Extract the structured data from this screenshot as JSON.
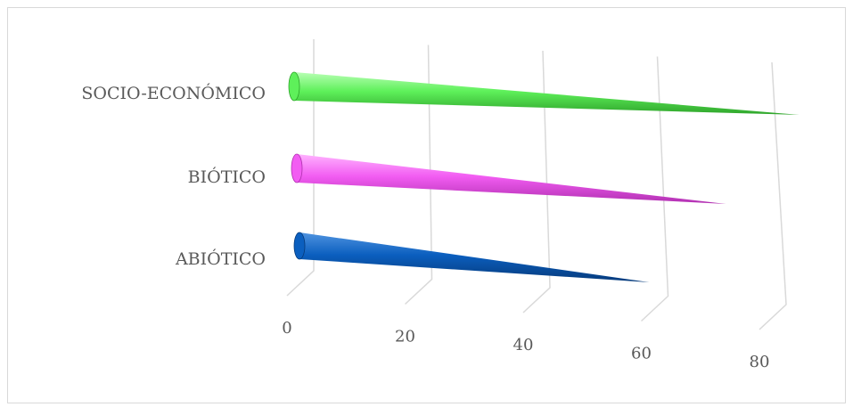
{
  "chart_data": {
    "type": "bar",
    "orientation": "horizontal",
    "style": "3d-cone",
    "categories": [
      "ABIÓTICO",
      "BIÓTICO",
      "SOCIO-ECONÓMICO"
    ],
    "series": [
      {
        "values": [
          60,
          72,
          83
        ]
      }
    ],
    "colors": [
      "#0b5fbf",
      "#f25cf2",
      "#5ef05a"
    ],
    "xticks": [
      "0",
      "20",
      "40",
      "60",
      "80"
    ],
    "xlim": [
      0,
      80
    ],
    "title": "",
    "xlabel": "",
    "ylabel": "",
    "grid": true,
    "legend": "none"
  }
}
